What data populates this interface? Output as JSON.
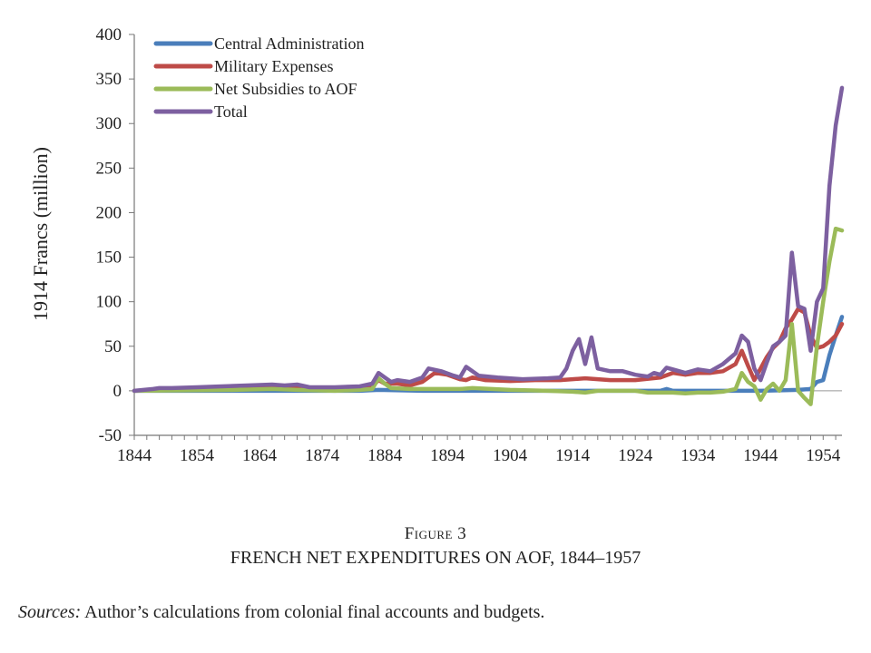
{
  "figure_label": "Figure 3",
  "figure_title": "FRENCH NET EXPENDITURES ON AOF, 1844–1957",
  "sources_label": "Sources:",
  "sources_text": "Author’s calculations from colonial final accounts and budgets.",
  "chart_data": {
    "type": "line",
    "title": "FRENCH NET EXPENDITURES ON AOF, 1844–1957",
    "xlabel": "",
    "ylabel": "1914 Francs (million)",
    "xlim": [
      1844,
      1957
    ],
    "ylim": [
      -50,
      400
    ],
    "x_ticks": [
      1844,
      1854,
      1864,
      1874,
      1884,
      1894,
      1904,
      1914,
      1924,
      1934,
      1944,
      1954
    ],
    "y_ticks": [
      -50,
      0,
      50,
      100,
      150,
      200,
      250,
      300,
      350,
      400
    ],
    "legend_position": "top-left",
    "series": [
      {
        "name": "Central Administration",
        "color": "#4a7ebb",
        "points": [
          [
            1844,
            0
          ],
          [
            1860,
            0
          ],
          [
            1880,
            0
          ],
          [
            1883,
            1
          ],
          [
            1890,
            0
          ],
          [
            1900,
            0
          ],
          [
            1914,
            0
          ],
          [
            1928,
            0
          ],
          [
            1929,
            2
          ],
          [
            1930,
            0
          ],
          [
            1940,
            0
          ],
          [
            1944,
            0
          ],
          [
            1950,
            1
          ],
          [
            1952,
            2
          ],
          [
            1953,
            10
          ],
          [
            1954,
            12
          ],
          [
            1955,
            40
          ],
          [
            1956,
            62
          ],
          [
            1957,
            83
          ]
        ]
      },
      {
        "name": "Military Expenses",
        "color": "#be4b48",
        "points": [
          [
            1844,
            0
          ],
          [
            1850,
            1
          ],
          [
            1856,
            2
          ],
          [
            1860,
            3
          ],
          [
            1866,
            4
          ],
          [
            1870,
            3
          ],
          [
            1876,
            2
          ],
          [
            1880,
            3
          ],
          [
            1882,
            5
          ],
          [
            1883,
            12
          ],
          [
            1884,
            8
          ],
          [
            1886,
            8
          ],
          [
            1888,
            6
          ],
          [
            1890,
            10
          ],
          [
            1892,
            20
          ],
          [
            1894,
            18
          ],
          [
            1896,
            13
          ],
          [
            1897,
            12
          ],
          [
            1898,
            15
          ],
          [
            1900,
            12
          ],
          [
            1904,
            11
          ],
          [
            1908,
            12
          ],
          [
            1912,
            12
          ],
          [
            1916,
            14
          ],
          [
            1918,
            13
          ],
          [
            1920,
            12
          ],
          [
            1924,
            12
          ],
          [
            1928,
            15
          ],
          [
            1930,
            20
          ],
          [
            1932,
            18
          ],
          [
            1934,
            20
          ],
          [
            1936,
            20
          ],
          [
            1938,
            22
          ],
          [
            1940,
            30
          ],
          [
            1941,
            45
          ],
          [
            1942,
            28
          ],
          [
            1943,
            12
          ],
          [
            1944,
            25
          ],
          [
            1945,
            38
          ],
          [
            1946,
            48
          ],
          [
            1947,
            55
          ],
          [
            1948,
            70
          ],
          [
            1949,
            80
          ],
          [
            1950,
            92
          ],
          [
            1951,
            88
          ],
          [
            1952,
            62
          ],
          [
            1953,
            48
          ],
          [
            1954,
            50
          ],
          [
            1955,
            55
          ],
          [
            1956,
            62
          ],
          [
            1957,
            75
          ]
        ]
      },
      {
        "name": "Net Subsidies to AOF",
        "color": "#9bbb59",
        "points": [
          [
            1844,
            0
          ],
          [
            1860,
            1
          ],
          [
            1866,
            2
          ],
          [
            1870,
            1
          ],
          [
            1876,
            0
          ],
          [
            1880,
            1
          ],
          [
            1882,
            2
          ],
          [
            1883,
            14
          ],
          [
            1884,
            8
          ],
          [
            1885,
            3
          ],
          [
            1888,
            2
          ],
          [
            1892,
            2
          ],
          [
            1896,
            2
          ],
          [
            1898,
            3
          ],
          [
            1904,
            1
          ],
          [
            1910,
            0
          ],
          [
            1914,
            -1
          ],
          [
            1916,
            -2
          ],
          [
            1918,
            0
          ],
          [
            1924,
            0
          ],
          [
            1926,
            -2
          ],
          [
            1930,
            -2
          ],
          [
            1932,
            -3
          ],
          [
            1934,
            -2
          ],
          [
            1936,
            -2
          ],
          [
            1938,
            -1
          ],
          [
            1940,
            2
          ],
          [
            1941,
            20
          ],
          [
            1942,
            10
          ],
          [
            1943,
            5
          ],
          [
            1944,
            -10
          ],
          [
            1945,
            2
          ],
          [
            1946,
            8
          ],
          [
            1947,
            0
          ],
          [
            1948,
            12
          ],
          [
            1949,
            75
          ],
          [
            1950,
            0
          ],
          [
            1951,
            -8
          ],
          [
            1952,
            -15
          ],
          [
            1953,
            50
          ],
          [
            1954,
            100
          ],
          [
            1955,
            145
          ],
          [
            1956,
            182
          ],
          [
            1957,
            180
          ]
        ]
      },
      {
        "name": "Total",
        "color": "#7d60a0",
        "points": [
          [
            1844,
            0
          ],
          [
            1847,
            2
          ],
          [
            1848,
            3
          ],
          [
            1850,
            3
          ],
          [
            1854,
            4
          ],
          [
            1858,
            5
          ],
          [
            1862,
            6
          ],
          [
            1866,
            7
          ],
          [
            1868,
            6
          ],
          [
            1870,
            7
          ],
          [
            1872,
            4
          ],
          [
            1876,
            4
          ],
          [
            1880,
            5
          ],
          [
            1882,
            8
          ],
          [
            1883,
            20
          ],
          [
            1884,
            15
          ],
          [
            1885,
            10
          ],
          [
            1886,
            12
          ],
          [
            1888,
            10
          ],
          [
            1890,
            15
          ],
          [
            1891,
            25
          ],
          [
            1893,
            22
          ],
          [
            1895,
            17
          ],
          [
            1896,
            15
          ],
          [
            1897,
            27
          ],
          [
            1898,
            22
          ],
          [
            1899,
            17
          ],
          [
            1902,
            15
          ],
          [
            1906,
            13
          ],
          [
            1910,
            14
          ],
          [
            1912,
            15
          ],
          [
            1913,
            25
          ],
          [
            1914,
            45
          ],
          [
            1915,
            58
          ],
          [
            1916,
            30
          ],
          [
            1917,
            60
          ],
          [
            1918,
            25
          ],
          [
            1920,
            22
          ],
          [
            1922,
            22
          ],
          [
            1924,
            18
          ],
          [
            1926,
            16
          ],
          [
            1927,
            20
          ],
          [
            1928,
            18
          ],
          [
            1929,
            26
          ],
          [
            1930,
            24
          ],
          [
            1932,
            20
          ],
          [
            1934,
            24
          ],
          [
            1936,
            22
          ],
          [
            1938,
            30
          ],
          [
            1940,
            42
          ],
          [
            1941,
            62
          ],
          [
            1942,
            55
          ],
          [
            1943,
            25
          ],
          [
            1944,
            12
          ],
          [
            1945,
            32
          ],
          [
            1946,
            50
          ],
          [
            1947,
            55
          ],
          [
            1948,
            62
          ],
          [
            1949,
            155
          ],
          [
            1950,
            95
          ],
          [
            1951,
            92
          ],
          [
            1952,
            45
          ],
          [
            1953,
            100
          ],
          [
            1954,
            115
          ],
          [
            1955,
            230
          ],
          [
            1956,
            298
          ],
          [
            1957,
            340
          ]
        ]
      }
    ]
  }
}
